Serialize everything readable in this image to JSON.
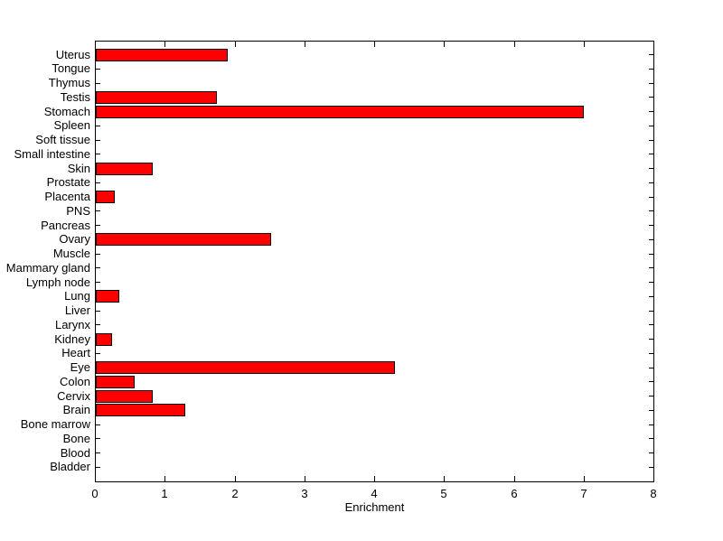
{
  "figure": {
    "background_color": "#ffffff",
    "axis_color": "#000000",
    "bar_fill_color": "#ff0000",
    "bar_edge_color": "#000000"
  },
  "chart_data": {
    "type": "bar",
    "orientation": "horizontal",
    "title": "",
    "xlabel": "Enrichment",
    "ylabel": "",
    "xlim": [
      0,
      8
    ],
    "xticks": [
      0,
      1,
      2,
      3,
      4,
      5,
      6,
      7,
      8
    ],
    "grid": false,
    "legend": "none",
    "categories_top_to_bottom": [
      "Uterus",
      "Tongue",
      "Thymus",
      "Testis",
      "Stomach",
      "Spleen",
      "Soft tissue",
      "Small intestine",
      "Skin",
      "Prostate",
      "Placenta",
      "PNS",
      "Pancreas",
      "Ovary",
      "Muscle",
      "Mammary gland",
      "Lymph node",
      "Lung",
      "Liver",
      "Larynx",
      "Kidney",
      "Heart",
      "Eye",
      "Colon",
      "Cervix",
      "Brain",
      "Bone marrow",
      "Bone",
      "Blood",
      "Bladder"
    ],
    "values": [
      1.9,
      0,
      0,
      1.75,
      7.0,
      0,
      0,
      0,
      0.83,
      0,
      0.28,
      0,
      0,
      2.52,
      0,
      0,
      0,
      0.35,
      0,
      0,
      0.25,
      0,
      4.3,
      0.57,
      0.83,
      1.3,
      0,
      0,
      0,
      0
    ]
  }
}
